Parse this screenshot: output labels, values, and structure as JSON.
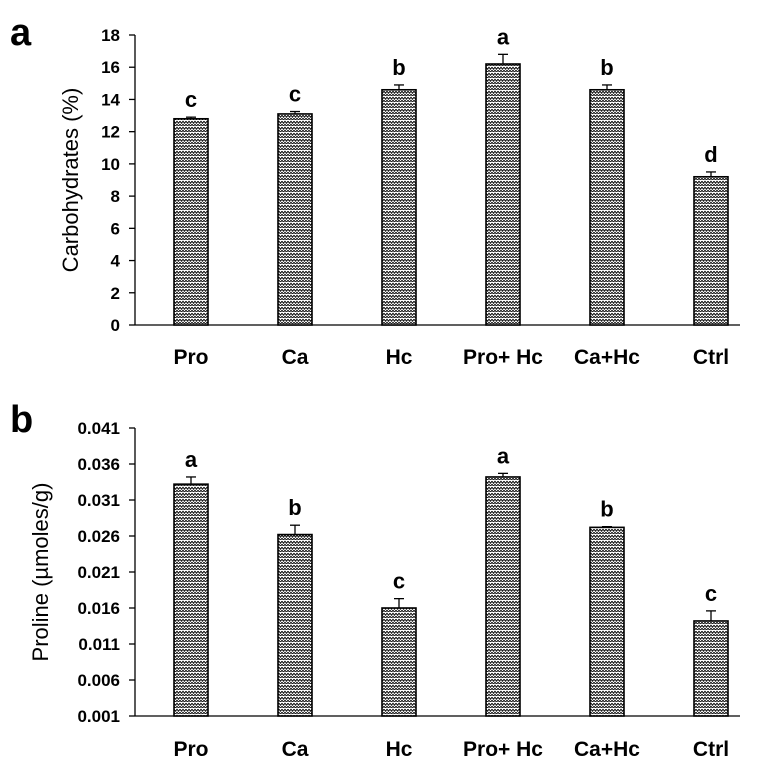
{
  "chart_data": [
    {
      "type": "bar",
      "panel_label": "a",
      "categories": [
        "Pro",
        "Ca",
        "Hc",
        "Pro+ Hc",
        "Ca+Hc",
        "Ctrl"
      ],
      "values": [
        12.8,
        13.1,
        14.6,
        16.2,
        14.6,
        9.2
      ],
      "errors": [
        0.1,
        0.15,
        0.3,
        0.6,
        0.3,
        0.3
      ],
      "significance": [
        "c",
        "c",
        "b",
        "a",
        "b",
        "d"
      ],
      "ylabel": "Carbohydrates (%)",
      "ylim": [
        0,
        18
      ],
      "yticks": [
        "0",
        "2",
        "4",
        "6",
        "8",
        "10",
        "12",
        "14",
        "16",
        "18"
      ],
      "bar_pattern": "zigzag hatch",
      "grid": false
    },
    {
      "type": "bar",
      "panel_label": "b",
      "categories": [
        "Pro",
        "Ca",
        "Hc",
        "Pro+ Hc",
        "Ca+Hc",
        "Ctrl"
      ],
      "values": [
        0.0332,
        0.0262,
        0.016,
        0.0342,
        0.0272,
        0.0142
      ],
      "errors": [
        0.001,
        0.0013,
        0.0013,
        0.0005,
        0.0001,
        0.0014
      ],
      "significance": [
        "a",
        "b",
        "c",
        "a",
        "b",
        "c"
      ],
      "ylabel": "Proline (µmoles/g)",
      "ylim": [
        0.001,
        0.041
      ],
      "yticks": [
        "0.001",
        "0.006",
        "0.011",
        "0.016",
        "0.021",
        "0.026",
        "0.031",
        "0.036",
        "0.041"
      ],
      "bar_pattern": "zigzag hatch",
      "grid": false
    }
  ]
}
